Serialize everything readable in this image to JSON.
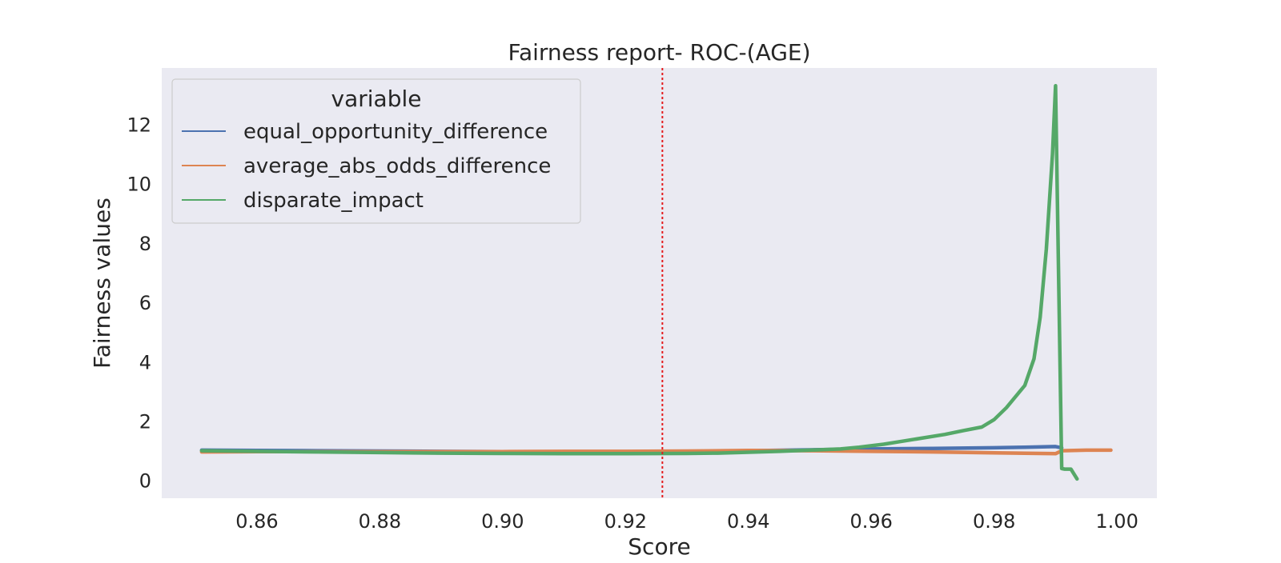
{
  "chart_data": {
    "type": "line",
    "title": "Fairness report- ROC-(AGE)",
    "xlabel": "Score",
    "ylabel": "Fairness values",
    "xlim": [
      0.8445,
      1.0065
    ],
    "ylim": [
      -0.6,
      13.9
    ],
    "xticks": [
      0.86,
      0.88,
      0.9,
      0.92,
      0.94,
      0.96,
      0.98,
      1.0
    ],
    "xtick_labels": [
      "0.86",
      "0.88",
      "0.90",
      "0.92",
      "0.94",
      "0.96",
      "0.98",
      "1.00"
    ],
    "yticks": [
      0,
      2,
      4,
      6,
      8,
      10,
      12
    ],
    "ytick_labels": [
      "0",
      "2",
      "4",
      "6",
      "8",
      "10",
      "12"
    ],
    "grid": false,
    "background_color": "#EAEAF2",
    "legend": {
      "title": "variable",
      "placement": "top-left"
    },
    "threshold_line": {
      "x": 0.926,
      "color": "#E41A1C",
      "style": "dotted"
    },
    "series": [
      {
        "name": "equal_opportunity_difference",
        "color": "#4C72B0",
        "x": [
          0.851,
          0.86,
          0.87,
          0.88,
          0.89,
          0.9,
          0.91,
          0.92,
          0.93,
          0.94,
          0.95,
          0.96,
          0.97,
          0.98,
          0.985,
          0.99,
          0.991
        ],
        "y": [
          1.02,
          1.01,
          1.0,
          0.99,
          0.98,
          0.97,
          0.97,
          0.96,
          0.97,
          1.0,
          1.03,
          1.06,
          1.08,
          1.1,
          1.12,
          1.14,
          1.1
        ]
      },
      {
        "name": "average_abs_odds_difference",
        "color": "#DD8452",
        "x": [
          0.851,
          0.86,
          0.87,
          0.88,
          0.89,
          0.9,
          0.91,
          0.92,
          0.93,
          0.94,
          0.95,
          0.96,
          0.97,
          0.98,
          0.99,
          0.991,
          0.995,
          0.999
        ],
        "y": [
          0.96,
          0.97,
          0.97,
          0.97,
          0.97,
          0.97,
          0.98,
          0.98,
          0.99,
          1.01,
          1.0,
          0.98,
          0.96,
          0.93,
          0.9,
          1.0,
          1.02,
          1.02
        ]
      },
      {
        "name": "disparate_impact",
        "color": "#55A868",
        "x": [
          0.851,
          0.86,
          0.87,
          0.88,
          0.89,
          0.9,
          0.91,
          0.92,
          0.93,
          0.935,
          0.94,
          0.945,
          0.95,
          0.955,
          0.958,
          0.962,
          0.965,
          0.968,
          0.972,
          0.975,
          0.978,
          0.98,
          0.982,
          0.985,
          0.9865,
          0.9875,
          0.9885,
          0.9895,
          0.99,
          0.991,
          0.9915,
          0.9925,
          0.9935
        ],
        "y": [
          1.0,
          0.98,
          0.96,
          0.94,
          0.92,
          0.91,
          0.9,
          0.9,
          0.91,
          0.92,
          0.95,
          0.98,
          1.02,
          1.06,
          1.12,
          1.22,
          1.32,
          1.42,
          1.55,
          1.68,
          1.8,
          2.05,
          2.45,
          3.2,
          4.1,
          5.5,
          7.8,
          11.0,
          13.3,
          0.4,
          0.38,
          0.38,
          0.05
        ]
      }
    ]
  }
}
